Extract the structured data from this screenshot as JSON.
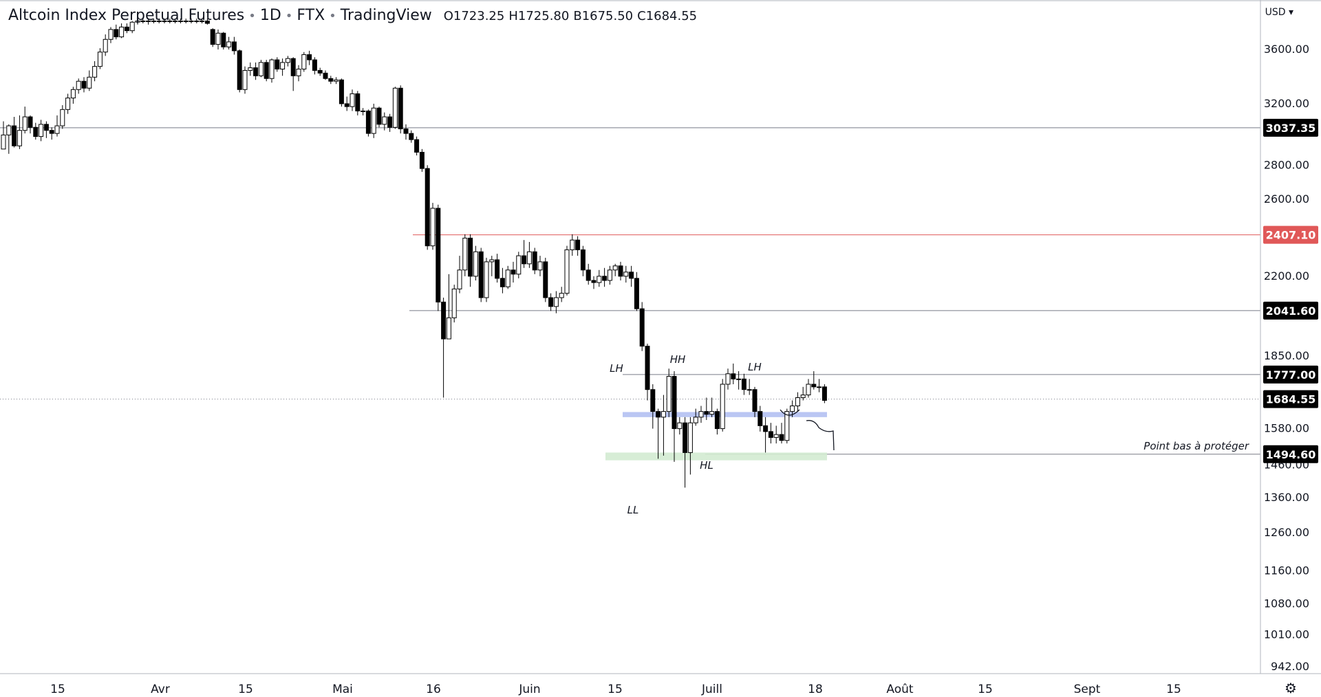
{
  "header": {
    "symbol": "Altcoin Index Perpetual Futures",
    "interval": "1D",
    "exchange": "FTX",
    "platform": "TradingView",
    "open": "1723.25",
    "high": "1725.80",
    "low": "1675.50",
    "close": "1684.55",
    "o_key": "O",
    "h_key": "H",
    "l_key": "B",
    "c_key": "C"
  },
  "currency": "USD",
  "colors": {
    "up": "#ffffff",
    "down": "#000000",
    "wick": "#000000",
    "grid_line": "#787b86",
    "red_level": "#e05858",
    "blue_zone": "#b3c0f2",
    "green_zone": "#d3ebd1",
    "label_bg": "#000000"
  },
  "chart_data": {
    "type": "candlestick",
    "scale": "log",
    "y_ticks": [
      3600,
      3200,
      2800,
      2600,
      2200,
      1850,
      1580,
      1460,
      1360,
      1260,
      1160,
      1080,
      1010,
      942
    ],
    "y_tick_labels": [
      "3600.00",
      "3200.00",
      "2800.00",
      "2600.00",
      "2200.00",
      "1850.00",
      "1580.00",
      "1460.00",
      "1360.00",
      "1260.00",
      "1160.00",
      "1080.00",
      "1010.00",
      "942.00"
    ],
    "x_ticks": [
      "15",
      "Avr",
      "15",
      "Mai",
      "16",
      "Juin",
      "15",
      "Juill",
      "18",
      "Août",
      "15",
      "Sept",
      "15"
    ],
    "levels": [
      {
        "value": 3037.35,
        "label": "3037.35",
        "color": "#000000"
      },
      {
        "value": 2407.1,
        "label": "2407.10",
        "color": "#e05858"
      },
      {
        "value": 2041.6,
        "label": "2041.60",
        "color": "#000000"
      },
      {
        "value": 1777.0,
        "label": "1777.00",
        "color": "#000000"
      },
      {
        "value": 1684.55,
        "label": "1684.55",
        "color": "#000000"
      },
      {
        "value": 1494.6,
        "label": "1494.60",
        "color": "#000000"
      }
    ],
    "zones": [
      {
        "name": "blue",
        "from": 1620,
        "to": 1638
      },
      {
        "name": "green",
        "from": 1475,
        "to": 1500
      }
    ],
    "annotations": [
      "LH",
      "HH",
      "LH",
      "HL",
      "LL",
      "Point bas à protéger"
    ],
    "candles_price": [
      [
        2900,
        2990,
        3080,
        2900
      ],
      [
        2990,
        3050,
        3060,
        2870
      ],
      [
        3050,
        2920,
        3110,
        2910
      ],
      [
        2920,
        3020,
        3120,
        2900
      ],
      [
        3020,
        3110,
        3180,
        3000
      ],
      [
        3110,
        3040,
        3120,
        3000
      ],
      [
        3040,
        2980,
        3070,
        2960
      ],
      [
        2980,
        3060,
        3090,
        2950
      ],
      [
        3060,
        3020,
        3080,
        2970
      ],
      [
        3020,
        3000,
        3040,
        2960
      ],
      [
        3000,
        3050,
        3120,
        2980
      ],
      [
        3050,
        3160,
        3190,
        3030
      ],
      [
        3160,
        3240,
        3270,
        3130
      ],
      [
        3240,
        3300,
        3320,
        3200
      ],
      [
        3300,
        3360,
        3380,
        3270
      ],
      [
        3360,
        3310,
        3390,
        3280
      ],
      [
        3310,
        3390,
        3440,
        3290
      ],
      [
        3390,
        3470,
        3510,
        3360
      ],
      [
        3470,
        3580,
        3610,
        3450
      ],
      [
        3580,
        3680,
        3720,
        3550
      ],
      [
        3680,
        3760,
        3780,
        3650
      ],
      [
        3760,
        3700,
        3800,
        3680
      ],
      [
        3700,
        3780,
        3810,
        3690
      ],
      [
        3780,
        3750,
        3810,
        3730
      ],
      [
        3750,
        3820,
        3830,
        3730
      ],
      [
        3820,
        3830,
        3840,
        3800
      ],
      [
        3830,
        3830,
        3850,
        3810
      ],
      [
        3830,
        3830,
        3850,
        3800
      ],
      [
        3830,
        3830,
        3850,
        3810
      ],
      [
        3830,
        3830,
        3850,
        3810
      ],
      [
        3830,
        3830,
        3850,
        3810
      ],
      [
        3830,
        3830,
        3850,
        3810
      ],
      [
        3830,
        3830,
        3850,
        3810
      ],
      [
        3830,
        3830,
        3850,
        3810
      ],
      [
        3830,
        3830,
        3850,
        3810
      ],
      [
        3830,
        3830,
        3850,
        3810
      ],
      [
        3830,
        3830,
        3850,
        3810
      ],
      [
        3830,
        3830,
        3850,
        3810
      ],
      [
        3830,
        3810,
        3850,
        3800
      ],
      [
        3760,
        3640,
        3770,
        3620
      ],
      [
        3640,
        3730,
        3760,
        3600
      ],
      [
        3730,
        3620,
        3740,
        3600
      ],
      [
        3620,
        3660,
        3700,
        3600
      ],
      [
        3660,
        3590,
        3700,
        3560
      ],
      [
        3590,
        3300,
        3600,
        3280
      ],
      [
        3300,
        3440,
        3470,
        3270
      ],
      [
        3440,
        3460,
        3500,
        3400
      ],
      [
        3460,
        3400,
        3500,
        3370
      ],
      [
        3400,
        3500,
        3520,
        3390
      ],
      [
        3500,
        3380,
        3520,
        3360
      ],
      [
        3380,
        3520,
        3530,
        3350
      ],
      [
        3520,
        3450,
        3540,
        3430
      ],
      [
        3450,
        3500,
        3530,
        3400
      ],
      [
        3500,
        3530,
        3550,
        3470
      ],
      [
        3530,
        3400,
        3540,
        3290
      ],
      [
        3400,
        3450,
        3480,
        3360
      ],
      [
        3450,
        3560,
        3580,
        3430
      ],
      [
        3560,
        3520,
        3590,
        3480
      ],
      [
        3520,
        3440,
        3540,
        3410
      ],
      [
        3440,
        3420,
        3460,
        3400
      ],
      [
        3420,
        3380,
        3440,
        3370
      ],
      [
        3380,
        3360,
        3400,
        3340
      ],
      [
        3360,
        3370,
        3390,
        3340
      ],
      [
        3370,
        3200,
        3380,
        3180
      ],
      [
        3200,
        3180,
        3250,
        3150
      ],
      [
        3180,
        3270,
        3300,
        3150
      ],
      [
        3270,
        3150,
        3290,
        3120
      ],
      [
        3150,
        3150,
        3170,
        3120
      ],
      [
        3150,
        3000,
        3160,
        2980
      ],
      [
        3000,
        3170,
        3200,
        2970
      ],
      [
        3170,
        3060,
        3180,
        3040
      ],
      [
        3060,
        3110,
        3140,
        3020
      ],
      [
        3110,
        3040,
        3130,
        3010
      ],
      [
        3040,
        3310,
        3320,
        3030
      ],
      [
        3310,
        3030,
        3330,
        3000
      ],
      [
        3030,
        3000,
        3060,
        2960
      ],
      [
        3000,
        2960,
        3020,
        2940
      ],
      [
        2960,
        2880,
        2980,
        2860
      ],
      [
        2880,
        2780,
        2900,
        2760
      ],
      [
        2780,
        2350,
        2800,
        2330
      ],
      [
        2350,
        2550,
        2580,
        2330
      ],
      [
        2550,
        2080,
        2570,
        2040
      ],
      [
        2080,
        1920,
        2100,
        1690
      ],
      [
        1920,
        2010,
        2210,
        1980
      ],
      [
        2010,
        2140,
        2160,
        1990
      ],
      [
        2140,
        2230,
        2300,
        2120
      ],
      [
        2230,
        2390,
        2410,
        2200
      ],
      [
        2390,
        2200,
        2410,
        2150
      ],
      [
        2200,
        2320,
        2350,
        2180
      ],
      [
        2320,
        2100,
        2340,
        2080
      ],
      [
        2100,
        2270,
        2290,
        2080
      ],
      [
        2270,
        2280,
        2300,
        2200
      ],
      [
        2280,
        2190,
        2310,
        2170
      ],
      [
        2190,
        2150,
        2240,
        2120
      ],
      [
        2150,
        2230,
        2250,
        2140
      ],
      [
        2230,
        2210,
        2270,
        2170
      ],
      [
        2210,
        2300,
        2320,
        2190
      ],
      [
        2300,
        2260,
        2380,
        2240
      ],
      [
        2260,
        2320,
        2370,
        2240
      ],
      [
        2320,
        2230,
        2340,
        2210
      ],
      [
        2230,
        2270,
        2300,
        2200
      ],
      [
        2270,
        2100,
        2290,
        2080
      ],
      [
        2100,
        2060,
        2120,
        2040
      ],
      [
        2060,
        2100,
        2130,
        2030
      ],
      [
        2100,
        2120,
        2150,
        2080
      ],
      [
        2120,
        2330,
        2350,
        2110
      ],
      [
        2330,
        2380,
        2410,
        2300
      ],
      [
        2380,
        2330,
        2400,
        2300
      ],
      [
        2330,
        2230,
        2350,
        2200
      ],
      [
        2230,
        2180,
        2260,
        2160
      ],
      [
        2180,
        2170,
        2200,
        2140
      ],
      [
        2170,
        2200,
        2230,
        2150
      ],
      [
        2200,
        2180,
        2240,
        2150
      ],
      [
        2180,
        2230,
        2250,
        2160
      ],
      [
        2230,
        2250,
        2260,
        2200
      ],
      [
        2250,
        2200,
        2270,
        2180
      ],
      [
        2200,
        2220,
        2250,
        2170
      ],
      [
        2220,
        2190,
        2250,
        2150
      ],
      [
        2190,
        2050,
        2220,
        2040
      ],
      [
        2050,
        1890,
        2080,
        1870
      ],
      [
        1890,
        1720,
        1900,
        1680
      ],
      [
        1720,
        1640,
        1740,
        1580
      ],
      [
        1640,
        1620,
        1650,
        1480
      ],
      [
        1620,
        1640,
        1700,
        1490
      ],
      [
        1640,
        1770,
        1800,
        1620
      ],
      [
        1770,
        1580,
        1790,
        1470
      ],
      [
        1580,
        1600,
        1620,
        1560
      ],
      [
        1600,
        1500,
        1620,
        1390
      ],
      [
        1500,
        1600,
        1620,
        1430
      ],
      [
        1600,
        1620,
        1650,
        1590
      ],
      [
        1620,
        1640,
        1660,
        1600
      ],
      [
        1640,
        1630,
        1690,
        1610
      ],
      [
        1630,
        1640,
        1690,
        1620
      ],
      [
        1640,
        1580,
        1650,
        1560
      ],
      [
        1580,
        1740,
        1760,
        1570
      ],
      [
        1740,
        1780,
        1800,
        1720
      ],
      [
        1780,
        1760,
        1820,
        1740
      ],
      [
        1760,
        1760,
        1790,
        1720
      ],
      [
        1760,
        1720,
        1780,
        1700
      ],
      [
        1720,
        1720,
        1760,
        1700
      ],
      [
        1720,
        1640,
        1730,
        1620
      ],
      [
        1640,
        1590,
        1660,
        1570
      ],
      [
        1590,
        1570,
        1620,
        1500
      ],
      [
        1570,
        1550,
        1600,
        1530
      ],
      [
        1550,
        1560,
        1590,
        1530
      ],
      [
        1560,
        1540,
        1600,
        1530
      ],
      [
        1540,
        1640,
        1650,
        1530
      ],
      [
        1640,
        1660,
        1680,
        1620
      ],
      [
        1660,
        1690,
        1710,
        1640
      ],
      [
        1690,
        1700,
        1730,
        1680
      ],
      [
        1700,
        1740,
        1760,
        1690
      ],
      [
        1740,
        1730,
        1790,
        1720
      ],
      [
        1730,
        1730,
        1760,
        1710
      ],
      [
        1730,
        1680,
        1740,
        1670
      ]
    ]
  }
}
